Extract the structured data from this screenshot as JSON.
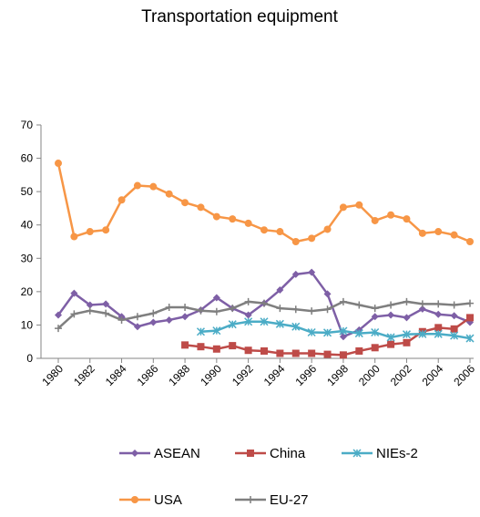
{
  "chart_data": {
    "type": "line",
    "title": "Transportation equipment",
    "x": [
      1980,
      1981,
      1982,
      1983,
      1984,
      1985,
      1986,
      1987,
      1988,
      1989,
      1990,
      1991,
      1992,
      1993,
      1994,
      1995,
      1996,
      1997,
      1998,
      1999,
      2000,
      2001,
      2002,
      2003,
      2004,
      2005,
      2006
    ],
    "xlim": [
      1980,
      2006
    ],
    "xticks": [
      1980,
      1982,
      1984,
      1986,
      1988,
      1990,
      1992,
      1994,
      1996,
      1998,
      2000,
      2002,
      2004,
      2006
    ],
    "ylim": [
      0,
      70
    ],
    "yticks": [
      0,
      10,
      20,
      30,
      40,
      50,
      60,
      70
    ],
    "grid": false,
    "series": [
      {
        "name": "ASEAN",
        "color": "#7e5fa6",
        "marker": "diamond",
        "values": [
          13,
          19.5,
          16,
          16.3,
          12.5,
          9.5,
          10.8,
          11.5,
          12.5,
          14.5,
          18.2,
          15,
          13,
          16.5,
          20.5,
          25.2,
          25.8,
          19.3,
          6.5,
          8.5,
          12.5,
          13,
          12.2,
          14.8,
          13.2,
          12.8,
          10.8
        ]
      },
      {
        "name": "China",
        "color": "#be4b48",
        "marker": "square",
        "values": [
          null,
          null,
          null,
          null,
          null,
          null,
          null,
          null,
          4,
          3.5,
          2.8,
          3.8,
          2.4,
          2.2,
          1.5,
          1.5,
          1.5,
          1.2,
          1,
          2.2,
          3.2,
          4.2,
          4.7,
          8,
          9.2,
          8.8,
          12.2
        ]
      },
      {
        "name": "NIEs-2",
        "color": "#4bacc6",
        "marker": "star",
        "values": [
          null,
          null,
          null,
          null,
          null,
          null,
          null,
          null,
          null,
          8,
          8.3,
          10.2,
          11,
          11,
          10.3,
          9.5,
          7.8,
          7.7,
          8.2,
          7.5,
          7.8,
          6.3,
          7.2,
          7.3,
          7.3,
          6.8,
          6
        ]
      },
      {
        "name": "USA",
        "color": "#f79646",
        "marker": "circle",
        "values": [
          58.5,
          36.5,
          38,
          38.5,
          47.5,
          51.8,
          51.5,
          49.3,
          46.7,
          45.3,
          42.5,
          41.8,
          40.5,
          38.5,
          38,
          35,
          36,
          38.7,
          45.3,
          46,
          41.3,
          43,
          41.8,
          37.5,
          38,
          37,
          35
        ]
      },
      {
        "name": "EU-27",
        "color": "#7f7f7f",
        "marker": "plus",
        "values": [
          9,
          13.3,
          14.3,
          13.5,
          11.5,
          12.5,
          13.5,
          15.3,
          15.3,
          14.3,
          14,
          15,
          17,
          16.5,
          15,
          14.7,
          14.2,
          14.7,
          17,
          16,
          15,
          16,
          17,
          16.3,
          16.3,
          16,
          16.5
        ]
      }
    ]
  }
}
